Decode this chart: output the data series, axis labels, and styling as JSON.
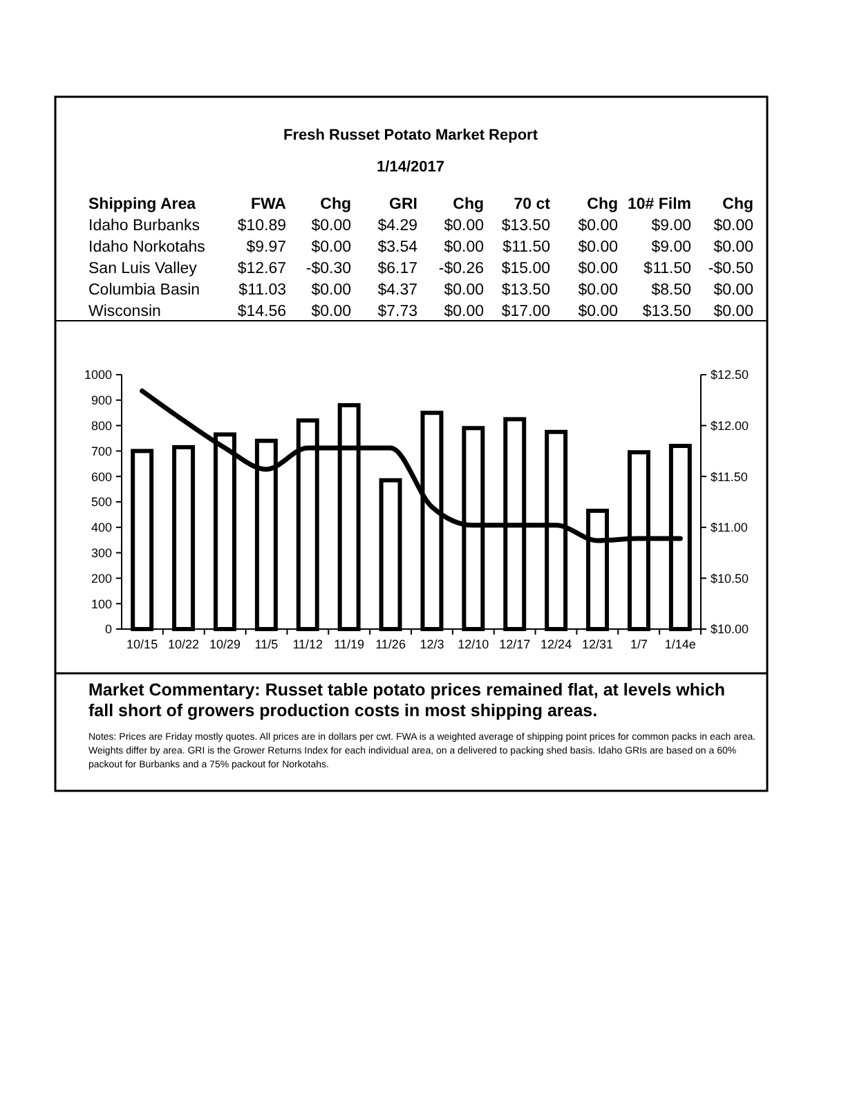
{
  "chart_data": [
    {
      "type": "other",
      "title": "Fresh Russet Potato Market Report",
      "subtitle": "1/14/2017",
      "annotations": [
        "Shipping Area",
        "FWA",
        "Chg",
        "GRI",
        "Chg",
        "70 ct",
        "Chg",
        "10# Film",
        "Chg",
        "Idaho Burbanks",
        "$10.89",
        "$0.00",
        "$4.29",
        "$0.00",
        "$13.50",
        "$0.00",
        "$9.00",
        "$0.00",
        "Idaho Norkotahs",
        "$9.97",
        "$0.00",
        "$3.54",
        "$0.00",
        "$11.50",
        "$0.00",
        "$9.00",
        "$0.00",
        "San Luis Valley",
        "$12.67",
        "-$0.30",
        "$6.17",
        "-$0.26",
        "$15.00",
        "$0.00",
        "$11.50",
        "-$0.50",
        "Columbia Basin",
        "$11.03",
        "$0.00",
        "$4.37",
        "$0.00",
        "$13.50",
        "$0.00",
        "$8.50",
        "$0.00",
        "Wisconsin",
        "$14.56",
        "$0.00",
        "$7.73",
        "$0.00",
        "$17.00",
        "$0.00",
        "$13.50",
        "$0.00"
      ]
    },
    {
      "type": "bar",
      "categories": [
        "10/15",
        "10/22",
        "10/29",
        "11/5",
        "11/12",
        "11/19",
        "11/26",
        "12/3",
        "12/10",
        "12/17",
        "12/24",
        "12/31",
        "1/7",
        "1/14e"
      ],
      "series": [
        {
          "type": "bar",
          "color": "#ffffff",
          "values": [
            700,
            715,
            765,
            740,
            820,
            880,
            585,
            850,
            790,
            825,
            775,
            465,
            695,
            720
          ]
        },
        {
          "type": "line",
          "axis": "y2",
          "color": "#000000",
          "values": [
            12.34,
            12.05,
            11.78,
            11.57,
            11.78,
            11.78,
            11.78,
            11.2,
            11.02,
            11.02,
            11.02,
            10.87,
            10.89,
            10.89
          ]
        }
      ],
      "ylim": [
        0,
        1000
      ],
      "yticks": [
        0,
        100,
        200,
        300,
        400,
        500,
        600,
        700,
        800,
        900,
        1000
      ],
      "y2lim": [
        10,
        12.5
      ],
      "y2ticks": [
        {
          "value": 10,
          "label": "$10.00"
        },
        {
          "value": 10.5,
          "label": "$10.50"
        },
        {
          "value": 11,
          "label": "$11.00"
        },
        {
          "value": 11.5,
          "label": "$11.50"
        },
        {
          "value": 12,
          "label": "$12.00"
        },
        {
          "value": 12.5,
          "label": "$12.50"
        }
      ],
      "grid": false,
      "marker": "none",
      "line_style": "solid",
      "annotations": [
        "Market Commentary: Russet table potato prices remained flat, at levels which fall short of growers production costs in most shipping areas.",
        "Notes: Prices are Friday mostly quotes. All prices are in dollars per cwt. FWA is a weighted average of shipping point prices for  common packs in each area. Weights differ by area. GRI is the Grower Returns Index for each individual area, on a delivered to packing shed basis. Idaho GRIs are based on a 60% packout for Burbanks and a 75% packout for Norkotahs."
      ]
    }
  ]
}
